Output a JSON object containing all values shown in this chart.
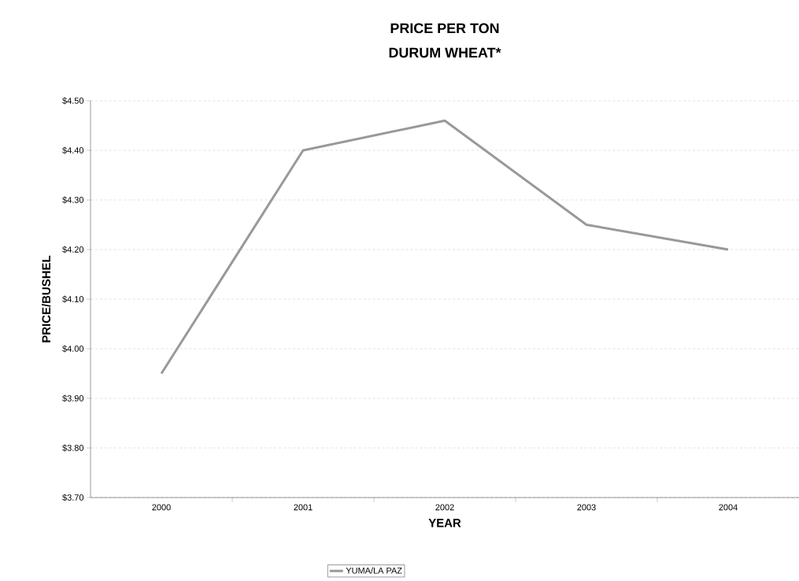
{
  "chart_data": {
    "type": "line",
    "title": "PRICE PER TON",
    "subtitle": "DURUM WHEAT*",
    "xlabel": "YEAR",
    "ylabel": "PRICE/BUSHEL",
    "categories": [
      "2000",
      "2001",
      "2002",
      "2003",
      "2004"
    ],
    "series": [
      {
        "name": "YUMA/LA PAZ",
        "color": "#999999",
        "values": [
          3.95,
          4.4,
          4.46,
          4.25,
          4.2
        ]
      }
    ],
    "ylim": [
      3.7,
      4.5
    ],
    "yticks": [
      {
        "value": 3.7,
        "label": "$3.70"
      },
      {
        "value": 3.8,
        "label": "$3.80"
      },
      {
        "value": 3.9,
        "label": "$3.90"
      },
      {
        "value": 4.0,
        "label": "$4.00"
      },
      {
        "value": 4.1,
        "label": "$4.10"
      },
      {
        "value": 4.2,
        "label": "$4.20"
      },
      {
        "value": 4.3,
        "label": "$4.30"
      },
      {
        "value": 4.4,
        "label": "$4.40"
      },
      {
        "value": 4.5,
        "label": "$4.50"
      }
    ],
    "grid": "y",
    "legend": "bottom",
    "marker": "none",
    "line_style": "solid"
  }
}
